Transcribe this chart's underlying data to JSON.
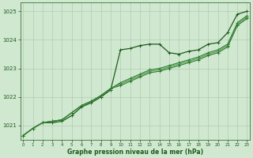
{
  "bg_color": "#d0e8d0",
  "grid_color": "#b0ccb0",
  "line_color_dark": "#1a5c1a",
  "line_color_mid": "#2d7a2d",
  "line_color_light": "#4a9a4a",
  "xlabel": "Graphe pression niveau de la mer (hPa)",
  "ylim": [
    1020.5,
    1025.3
  ],
  "xlim": [
    -0.3,
    23.3
  ],
  "yticks": [
    1021,
    1022,
    1023,
    1024,
    1025
  ],
  "xticks": [
    0,
    1,
    2,
    3,
    4,
    5,
    6,
    7,
    8,
    9,
    10,
    11,
    12,
    13,
    14,
    15,
    16,
    17,
    18,
    19,
    20,
    21,
    22,
    23
  ],
  "series": [
    [
      1020.65,
      1020.9,
      1021.1,
      1021.1,
      1021.15,
      1021.35,
      1021.65,
      1021.8,
      1022.0,
      1022.25,
      1023.65,
      1023.7,
      1023.8,
      1023.85,
      1023.85,
      1023.55,
      1023.5,
      1023.6,
      1023.65,
      1023.85,
      1023.9,
      1024.25,
      1024.9,
      1025.0
    ],
    [
      1020.65,
      1020.9,
      1021.1,
      1021.15,
      1021.2,
      1021.45,
      1021.7,
      1021.85,
      1022.05,
      1022.3,
      1022.5,
      1022.65,
      1022.8,
      1022.95,
      1023.0,
      1023.1,
      1023.2,
      1023.3,
      1023.4,
      1023.55,
      1023.65,
      1023.85,
      1024.6,
      1024.85
    ],
    [
      1020.65,
      1020.9,
      1021.1,
      1021.15,
      1021.2,
      1021.45,
      1021.7,
      1021.85,
      1022.05,
      1022.3,
      1022.45,
      1022.6,
      1022.75,
      1022.9,
      1022.95,
      1023.05,
      1023.15,
      1023.25,
      1023.35,
      1023.5,
      1023.6,
      1023.8,
      1024.55,
      1024.8
    ],
    [
      1020.65,
      1020.9,
      1021.1,
      1021.15,
      1021.2,
      1021.45,
      1021.7,
      1021.85,
      1022.05,
      1022.3,
      1022.4,
      1022.55,
      1022.7,
      1022.85,
      1022.9,
      1023.0,
      1023.1,
      1023.2,
      1023.3,
      1023.45,
      1023.55,
      1023.75,
      1024.5,
      1024.75
    ]
  ]
}
